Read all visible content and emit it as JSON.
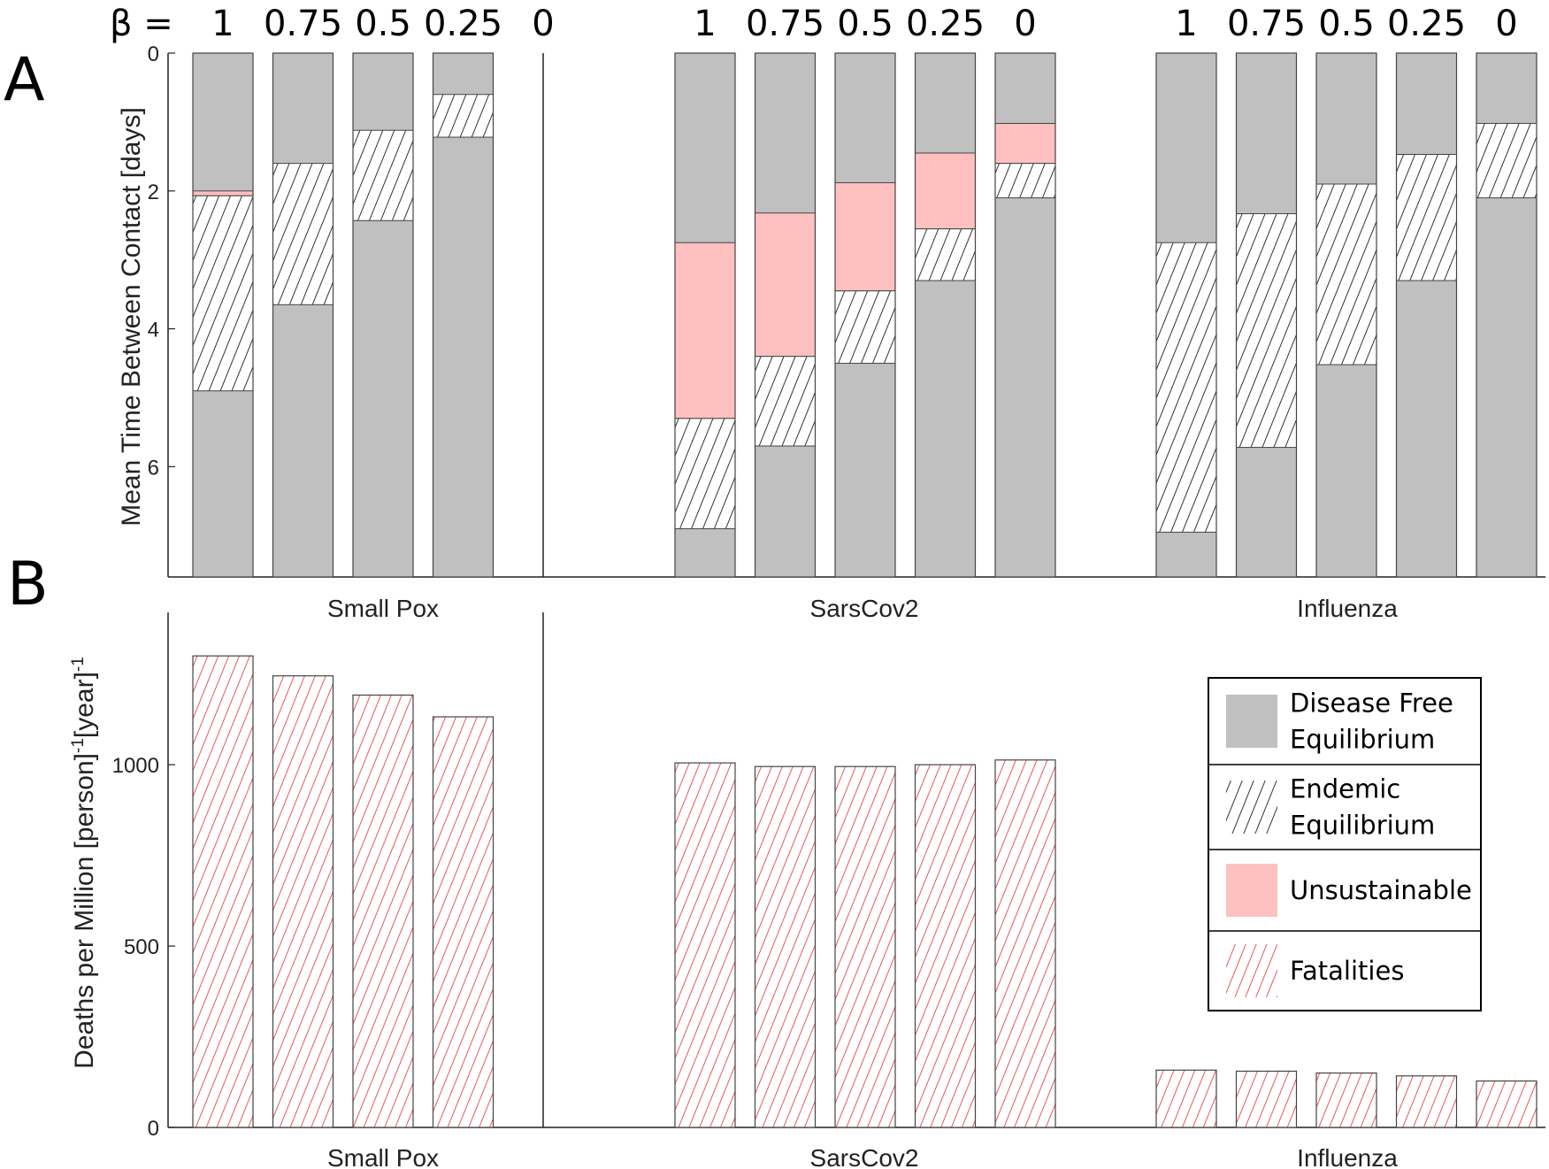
{
  "panel_labels": {
    "a": "A",
    "b": "B"
  },
  "beta_prefix": "β =",
  "colors": {
    "disease_free": "#c0c0c0",
    "unsustainable": "#ffc0c0",
    "fatalities_hatch": "#e03030",
    "endemic_hatch": "#000000",
    "outline": "#444444"
  },
  "legend": {
    "entries": [
      {
        "key": "disease_free",
        "lines": [
          "Disease Free",
          "Equilibrium"
        ]
      },
      {
        "key": "endemic",
        "lines": [
          "Endemic",
          "Equilibrium"
        ]
      },
      {
        "key": "unsustainable",
        "lines": [
          "Unsustainable"
        ]
      },
      {
        "key": "fatalities",
        "lines": [
          "Fatalities"
        ]
      }
    ]
  },
  "chart_data": [
    {
      "type": "bar",
      "panel": "A",
      "stacked": true,
      "ylabel": "Mean Time Between Contact [days]",
      "ylim": [
        0,
        7.6
      ],
      "y_reversed": true,
      "yticks": [
        "0",
        "2",
        "4",
        "6"
      ],
      "grid": false,
      "groups": [
        {
          "name": "Small Pox",
          "beta_labels": [
            "1",
            "0.75",
            "0.5",
            "0.25",
            "0"
          ],
          "bars": [
            {
              "unsustainable": [
                2.0,
                2.07
              ],
              "endemic": [
                2.07,
                4.9
              ]
            },
            {
              "endemic": [
                1.6,
                3.65
              ]
            },
            {
              "endemic": [
                1.12,
                2.43
              ]
            },
            {
              "endemic": [
                0.6,
                1.22
              ]
            },
            null
          ]
        },
        {
          "name": "SarsCov2",
          "beta_labels": [
            "1",
            "0.75",
            "0.5",
            "0.25",
            "0"
          ],
          "bars": [
            {
              "unsustainable": [
                2.75,
                5.3
              ],
              "endemic": [
                5.3,
                6.9
              ]
            },
            {
              "unsustainable": [
                2.32,
                4.4
              ],
              "endemic": [
                4.4,
                5.7
              ]
            },
            {
              "unsustainable": [
                1.88,
                3.45
              ],
              "endemic": [
                3.45,
                4.5
              ]
            },
            {
              "unsustainable": [
                1.45,
                2.55
              ],
              "endemic": [
                2.55,
                3.3
              ]
            },
            {
              "unsustainable": [
                1.02,
                1.6
              ],
              "endemic": [
                1.6,
                2.1
              ]
            }
          ]
        },
        {
          "name": "Influenza",
          "beta_labels": [
            "1",
            "0.75",
            "0.5",
            "0.25",
            "0"
          ],
          "bars": [
            {
              "endemic": [
                2.75,
                6.95
              ]
            },
            {
              "endemic": [
                2.33,
                5.72
              ]
            },
            {
              "endemic": [
                1.9,
                4.52
              ]
            },
            {
              "endemic": [
                1.47,
                3.3
              ]
            },
            {
              "endemic": [
                1.02,
                2.1
              ]
            }
          ]
        }
      ]
    },
    {
      "type": "bar",
      "panel": "B",
      "ylabel": "Deaths per Million [person]",
      "ylabel_sup1": "-1",
      "ylabel_mid": "[year]",
      "ylabel_sup2": "-1",
      "ylim": [
        0,
        1420
      ],
      "yticks": [
        "0",
        "500",
        "1000"
      ],
      "grid": false,
      "series": [
        {
          "name": "Fatalities"
        }
      ],
      "groups": [
        {
          "name": "Small Pox",
          "values": [
            1300,
            1245,
            1192,
            1132
          ]
        },
        {
          "name": "SarsCov2",
          "values": [
            1005,
            995,
            995,
            1000,
            1013
          ]
        },
        {
          "name": "Influenza",
          "values": [
            158,
            155,
            150,
            142,
            128
          ]
        }
      ]
    }
  ]
}
